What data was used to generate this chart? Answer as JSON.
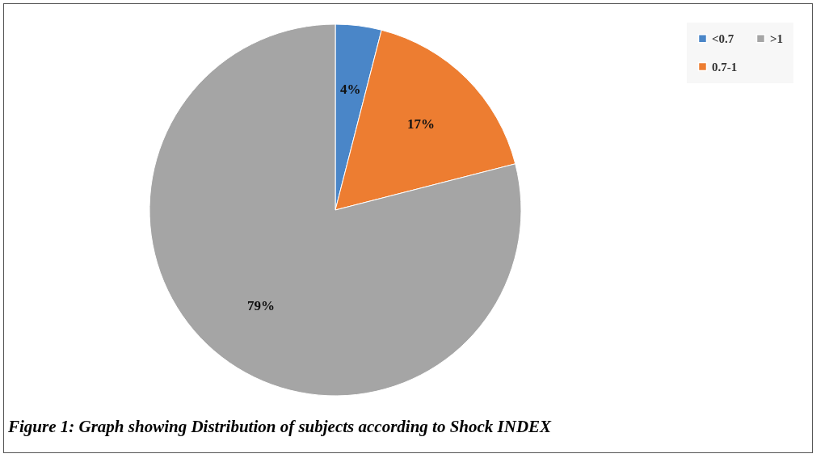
{
  "chart_data": {
    "type": "pie",
    "categories": [
      "<0.7",
      "0.7-1",
      ">1"
    ],
    "values": [
      4,
      17,
      79
    ],
    "colors": [
      "#4a86c8",
      "#ed7d31",
      "#a5a5a5"
    ],
    "value_labels": [
      "4%",
      "17%",
      "79%"
    ],
    "legend": "top right",
    "annotations": [
      "Figure 1: Graph showing Distribution of subjects according to Shock INDEX"
    ]
  }
}
